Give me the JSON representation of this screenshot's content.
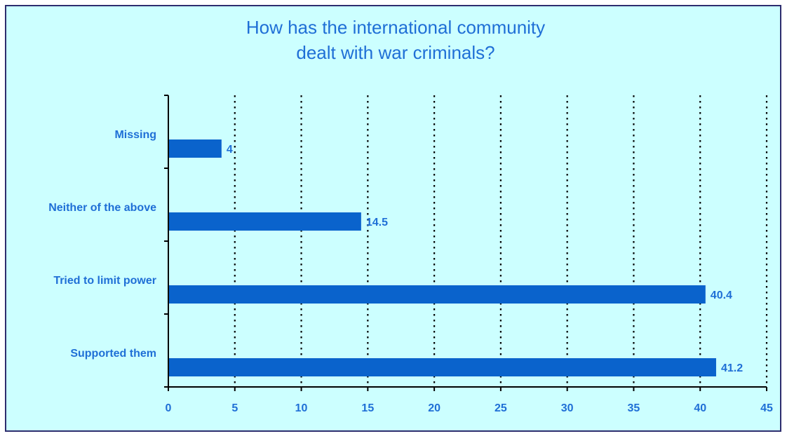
{
  "chart_data": {
    "type": "bar",
    "orientation": "horizontal",
    "title_lines": [
      "How has the international community",
      "dealt with war criminals?"
    ],
    "categories": [
      "Missing",
      "Neither of the above",
      "Tried to limit power",
      "Supported them"
    ],
    "values": [
      4,
      14.5,
      40.4,
      41.2
    ],
    "value_labels": [
      "4",
      "14.5",
      "40.4",
      "41.2"
    ],
    "xlim": [
      0,
      45
    ],
    "xticks": [
      0,
      5,
      10,
      15,
      20,
      25,
      30,
      35,
      40,
      45
    ],
    "xtick_labels": [
      "0",
      "5",
      "10",
      "15",
      "20",
      "25",
      "30",
      "35",
      "40",
      "45"
    ],
    "grid": "vertical dotted",
    "legend": "none"
  },
  "colors": {
    "background": "#ccffff",
    "frame": "#2d2d6e",
    "bar": "#0a63cc",
    "text": "#1f6fd6",
    "axis": "#000000"
  }
}
